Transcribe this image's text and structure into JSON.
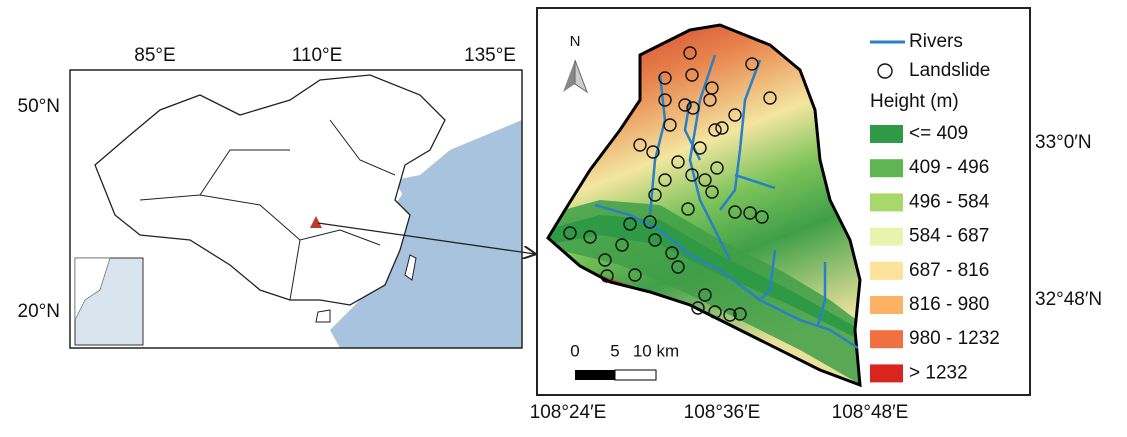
{
  "left_map": {
    "lon_labels": [
      "85°E",
      "110°E",
      "135°E"
    ],
    "lat_labels": [
      "50°N",
      "20°N"
    ]
  },
  "right_map": {
    "lon_labels": [
      "108°24′E",
      "108°36′E",
      "108°48′E"
    ],
    "lat_labels": [
      "33°0′N",
      "32°48′N"
    ],
    "north": "N",
    "scale_labels": [
      "0",
      "5",
      "10 km"
    ],
    "legend": {
      "rivers": "Rivers",
      "landslide": "Landslide",
      "height_title": "Height (m)",
      "classes": [
        {
          "label": "<= 409",
          "color": "#2f9a45"
        },
        {
          "label": "409 - 496",
          "color": "#5fb552"
        },
        {
          "label": "496 - 584",
          "color": "#a8d86c"
        },
        {
          "label": "584 - 687",
          "color": "#e8f4ad"
        },
        {
          "label": "687 - 816",
          "color": "#fde39a"
        },
        {
          "label": "816 - 980",
          "color": "#fbb265"
        },
        {
          "label": "980 - 1232",
          "color": "#f1703f"
        },
        {
          "label": "> 1232",
          "color": "#d8261f"
        }
      ]
    }
  }
}
